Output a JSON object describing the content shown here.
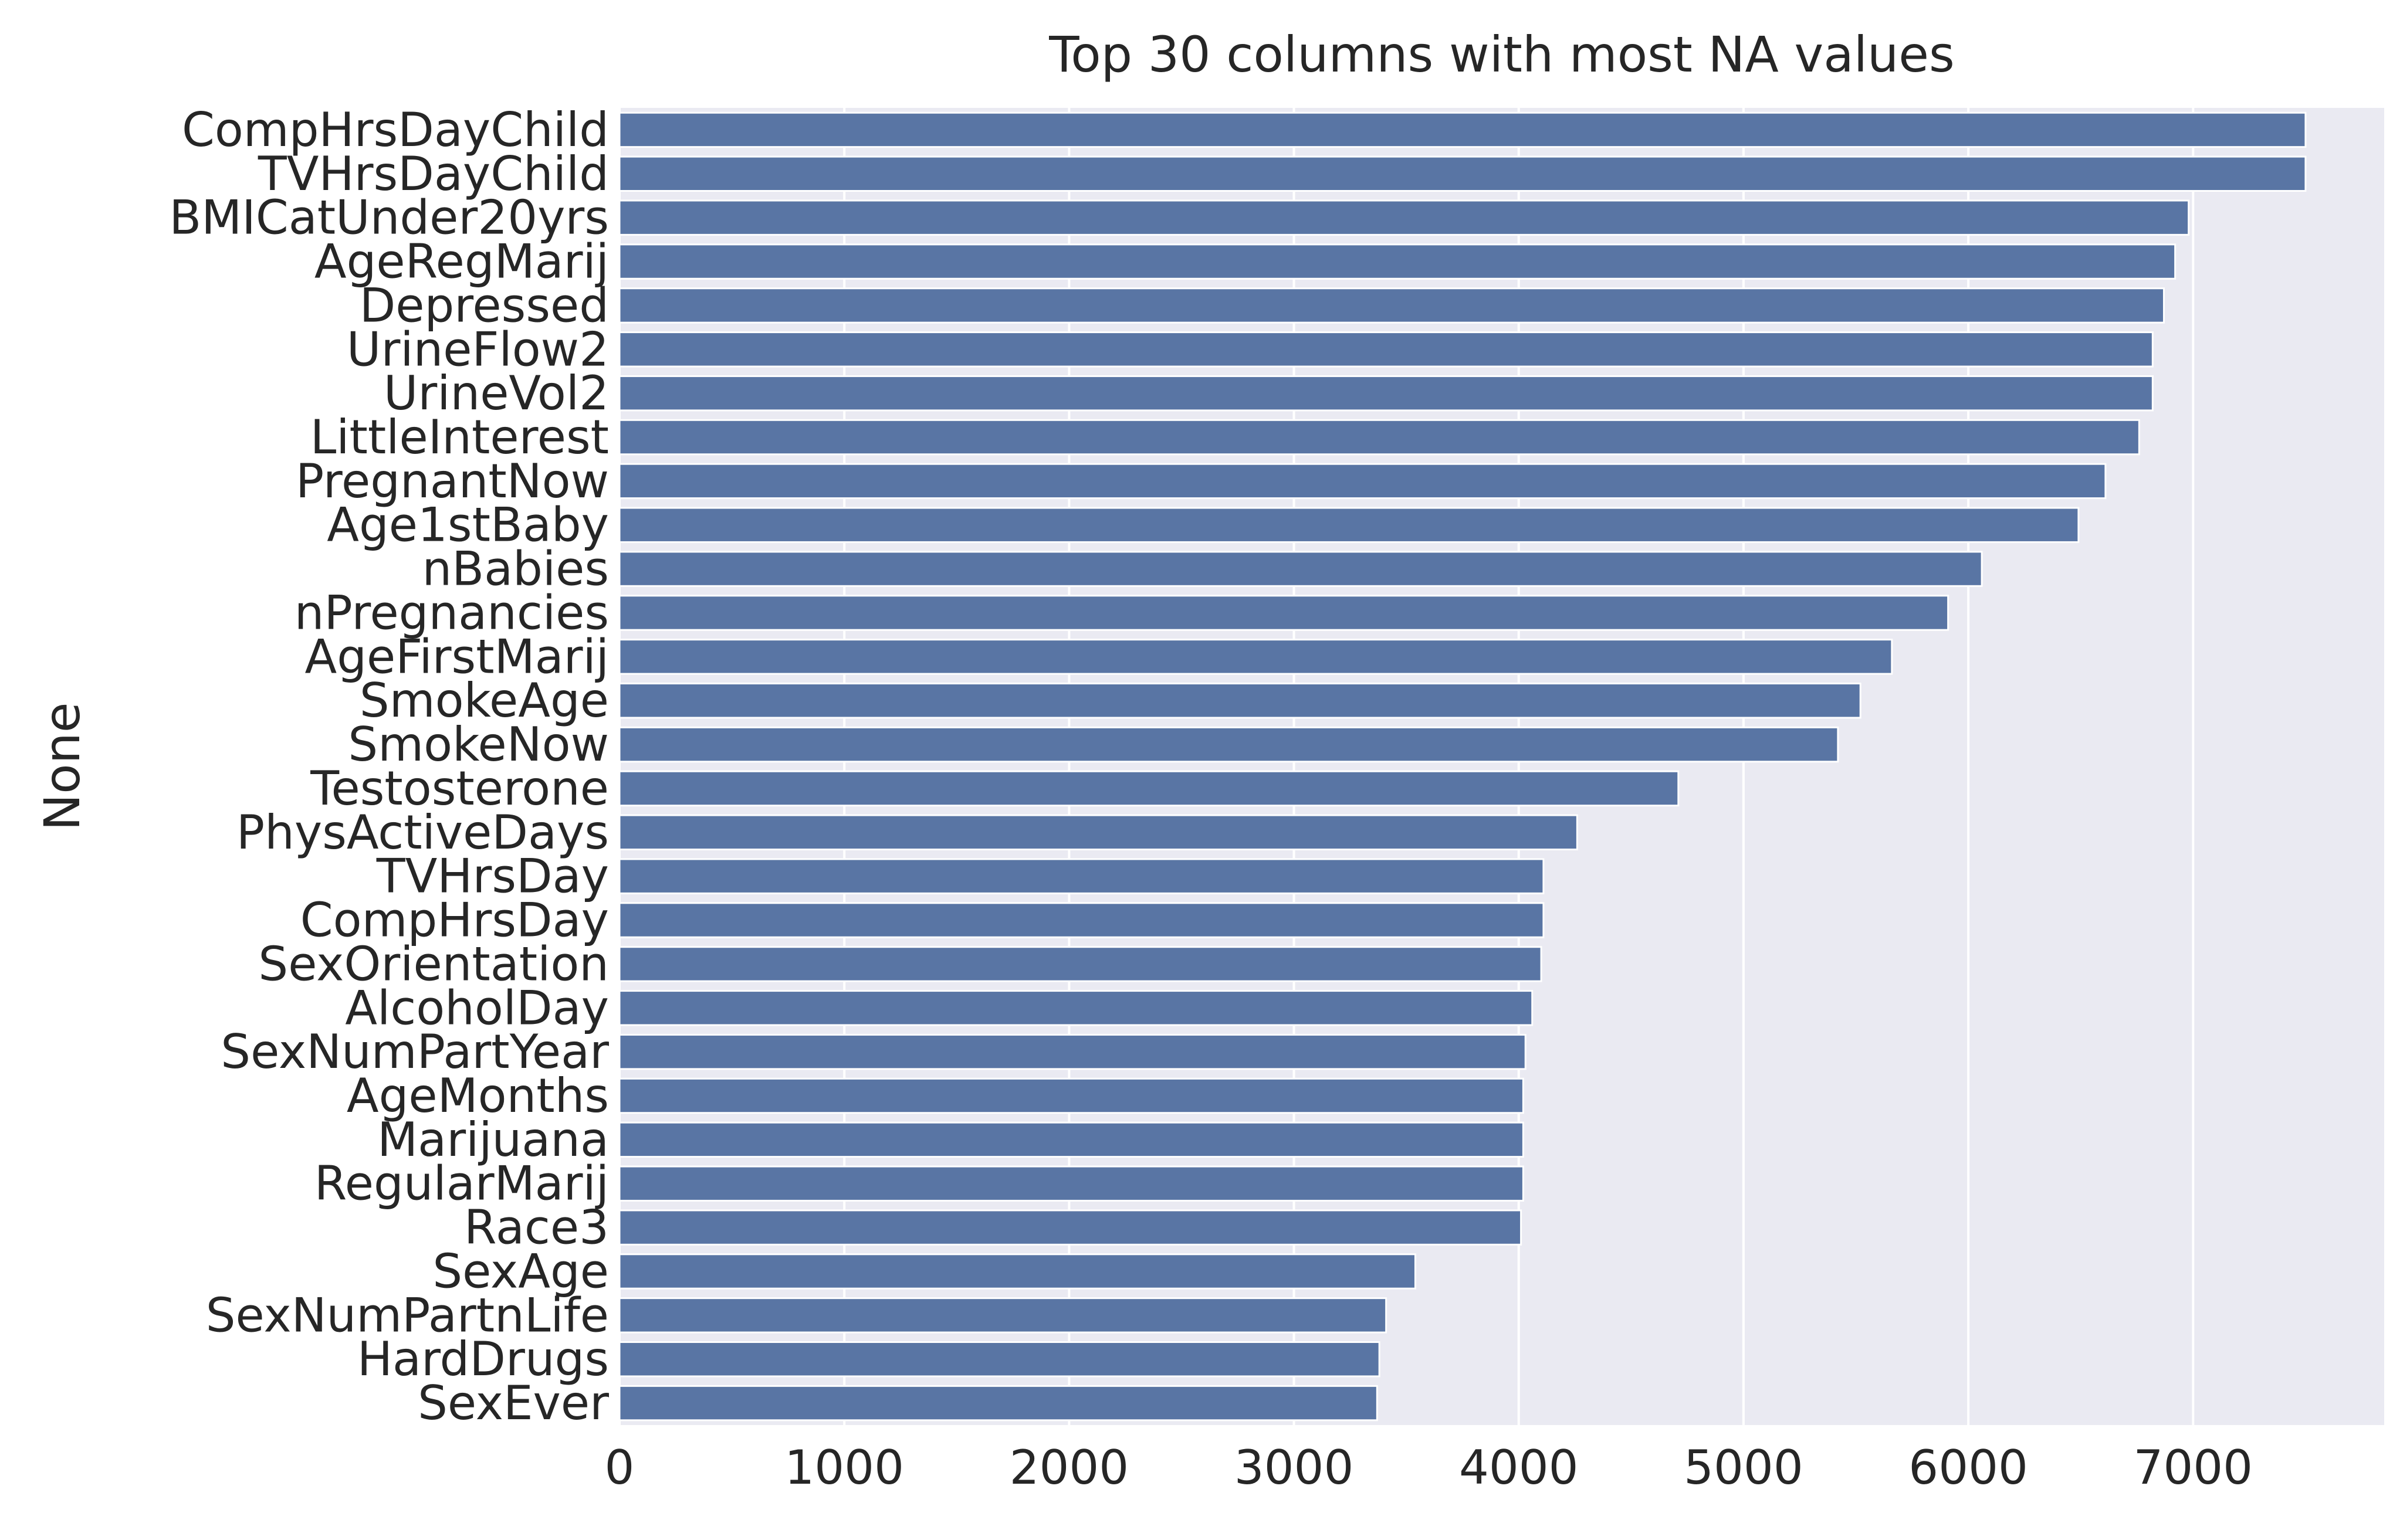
{
  "chart_data": {
    "type": "bar",
    "orientation": "horizontal",
    "title": "Top 30 columns with most NA values",
    "xlabel": "",
    "ylabel": "None",
    "xlim": [
      0,
      7850
    ],
    "xticks": [
      0,
      1000,
      2000,
      3000,
      4000,
      5000,
      6000,
      7000
    ],
    "grid": true,
    "legend": "none",
    "colors": {
      "bar": "#5975a4",
      "plot_background": "#eaeaf2",
      "grid": "#ffffff",
      "text": "#262626"
    },
    "categories": [
      "CompHrsDayChild",
      "TVHrsDayChild",
      "BMICatUnder20yrs",
      "AgeRegMarij",
      "Depressed",
      "UrineFlow2",
      "UrineVol2",
      "LittleInterest",
      "PregnantNow",
      "Age1stBaby",
      "nBabies",
      "nPregnancies",
      "AgeFirstMarij",
      "SmokeAge",
      "SmokeNow",
      "Testosterone",
      "PhysActiveDays",
      "TVHrsDay",
      "CompHrsDay",
      "SexOrientation",
      "AlcoholDay",
      "SexNumPartYear",
      "AgeMonths",
      "Marijuana",
      "RegularMarij",
      "Race3",
      "SexAge",
      "SexNumPartnLife",
      "HardDrugs",
      "SexEver"
    ],
    "values": [
      7500,
      7500,
      6980,
      6920,
      6870,
      6820,
      6820,
      6760,
      6610,
      6490,
      6060,
      5910,
      5660,
      5520,
      5420,
      4710,
      4260,
      4110,
      4110,
      4100,
      4060,
      4030,
      4020,
      4020,
      4020,
      4010,
      3540,
      3410,
      3380,
      3370
    ]
  }
}
